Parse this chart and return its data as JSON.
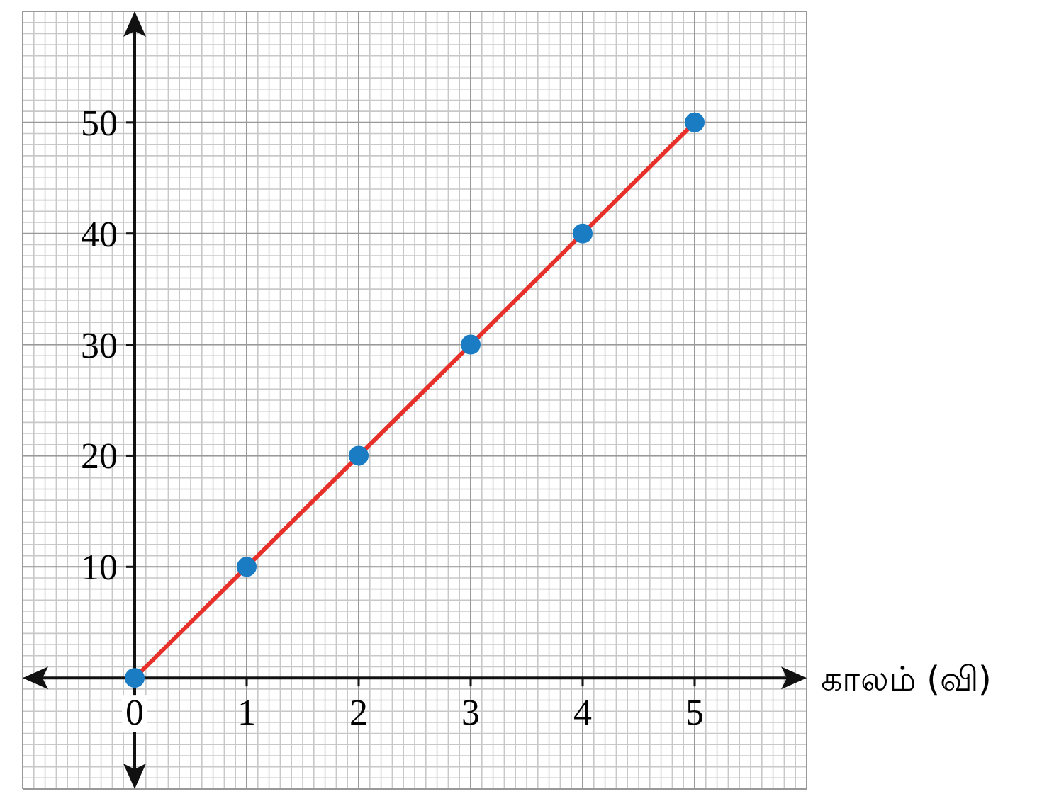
{
  "chart_data": {
    "type": "line",
    "xlabel": "காலம் (வி)",
    "x": [
      0,
      1,
      2,
      3,
      4,
      5
    ],
    "series": [
      {
        "color": "#e8302a",
        "values": [
          0,
          10,
          20,
          30,
          40,
          50
        ]
      }
    ],
    "marker": "circle",
    "line_style": "solid",
    "xlim": [
      -1,
      6
    ],
    "ylim": [
      -10,
      60
    ],
    "xticks": [
      0,
      1,
      2,
      3,
      4,
      5
    ],
    "yticks": [
      10,
      20,
      30,
      40,
      50
    ],
    "grid": true
  }
}
